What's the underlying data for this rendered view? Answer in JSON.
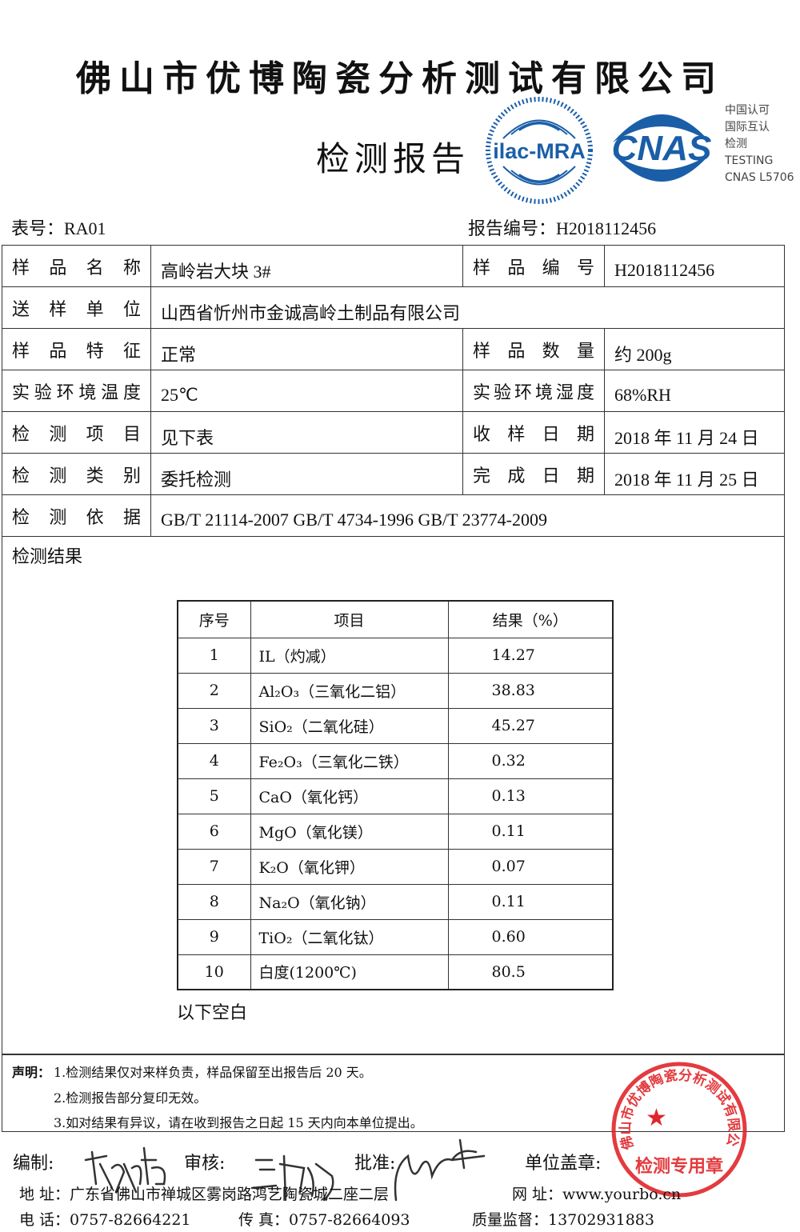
{
  "header": {
    "company": "佛山市优博陶瓷分析测试有限公司",
    "report_title": "检测报告",
    "ilac_logo": "ilac-MRA",
    "cnas_logo": "CNAS",
    "cnas_text": [
      "中国认可",
      "国际互认",
      "检测",
      "TESTING",
      "CNAS L5706"
    ],
    "brand_color": "#1a5ea8"
  },
  "meta": {
    "form_no": "表号：RA01",
    "report_no": "报告编号：H2018112456"
  },
  "info": {
    "sample_name_label": "样品名称",
    "sample_name": "高岭岩大块 3#",
    "sample_no_label": "样品编号",
    "sample_no": "H2018112456",
    "sender_label": "送样单位",
    "sender": "山西省忻州市金诚高岭土制品有限公司",
    "feature_label": "样品特征",
    "feature": "正常",
    "qty_label": "样品数量",
    "qty": "约 200g",
    "temp_label": "实验环境温度",
    "temp": "25℃",
    "humid_label": "实验环境湿度",
    "humid": "68%RH",
    "item_label": "检测项目",
    "item": "见下表",
    "recv_label": "收样日期",
    "recv": "2018 年 11 月 24 日",
    "type_label": "检测类别",
    "type": "委托检测",
    "done_label": "完成日期",
    "done": "2018 年 11 月 25 日",
    "basis_label": "检测依据",
    "basis": "GB/T 21114-2007 GB/T 4734-1996 GB/T 23774-2009"
  },
  "results": {
    "title": "检测结果",
    "headers": [
      "序号",
      "项目",
      "结果（%）"
    ],
    "rows": [
      [
        "1",
        "IL（灼减）",
        "14.27"
      ],
      [
        "2",
        "Al₂O₃（三氧化二铝）",
        "38.83"
      ],
      [
        "3",
        "SiO₂（二氧化硅）",
        "45.27"
      ],
      [
        "4",
        "Fe₂O₃（三氧化二铁）",
        "0.32"
      ],
      [
        "5",
        "CaO（氧化钙）",
        "0.13"
      ],
      [
        "6",
        "MgO（氧化镁）",
        "0.11"
      ],
      [
        "7",
        "K₂O（氧化钾）",
        "0.07"
      ],
      [
        "8",
        "Na₂O（氧化钠）",
        "0.11"
      ],
      [
        "9",
        "TiO₂（二氧化钛）",
        "0.60"
      ],
      [
        "10",
        "白度(1200℃)",
        "80.5"
      ]
    ],
    "blank_note": "以下空白"
  },
  "statement": {
    "label": "声明：",
    "lines": [
      "1.检测结果仅对来样负责，样品保留至出报告后 20 天。",
      "2.检测报告部分复印无效。",
      "3.如对结果有异议，请在收到报告之日起 15 天内向本单位提出。"
    ]
  },
  "signatures": {
    "compile": "编制:",
    "review": "审核:",
    "approve": "批准:",
    "seal": "单位盖章:"
  },
  "stamp": {
    "text": "佛山市优博陶瓷分析测试有限公司",
    "sub": "检测专用章",
    "color": "#e0262a"
  },
  "footer": {
    "address": "地  址：广东省佛山市禅城区雾岗路鸿艺陶瓷城二座二层",
    "website": "网      址：www.yourbo.cn",
    "phone": "电  话：0757-82664221",
    "fax": "传  真：0757-82664093",
    "quality": "质量监督：13702931883"
  }
}
